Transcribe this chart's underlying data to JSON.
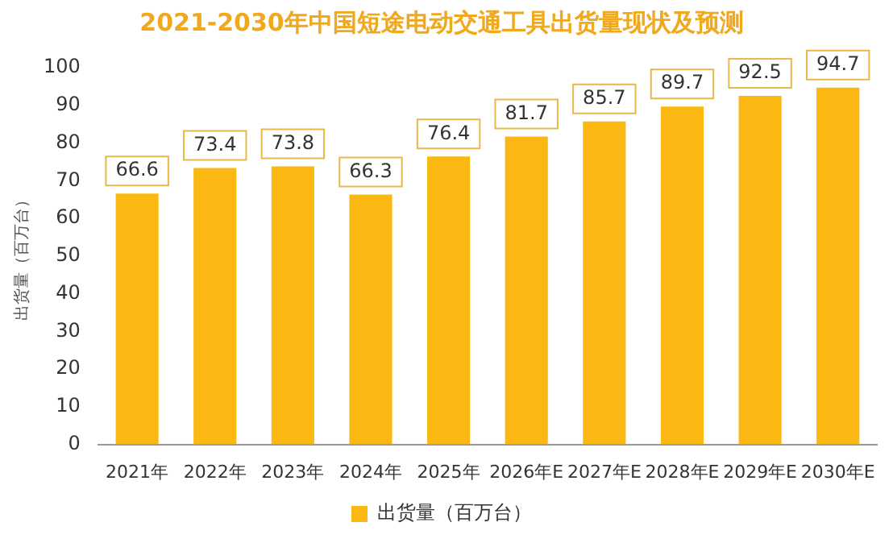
{
  "chart_data": {
    "type": "bar",
    "title": "2021-2030年中国短途电动交通工具出货量现状及预测",
    "ylabel": "出货量（百万台）",
    "categories": [
      "2021年",
      "2022年",
      "2023年",
      "2024年",
      "2025年",
      "2026年E",
      "2027年E",
      "2028年E",
      "2029年E",
      "2030年E"
    ],
    "series": [
      {
        "name": "出货量（百万台）",
        "color": "#fbb813",
        "values": [
          66.6,
          73.4,
          73.8,
          66.3,
          76.4,
          81.7,
          85.7,
          89.7,
          92.5,
          94.7
        ]
      }
    ],
    "ylim": [
      0,
      100
    ],
    "yticks": [
      0,
      10,
      20,
      30,
      40,
      50,
      60,
      70,
      80,
      90,
      100
    ],
    "grid": false,
    "legend": "bottom",
    "data_labels": true
  }
}
